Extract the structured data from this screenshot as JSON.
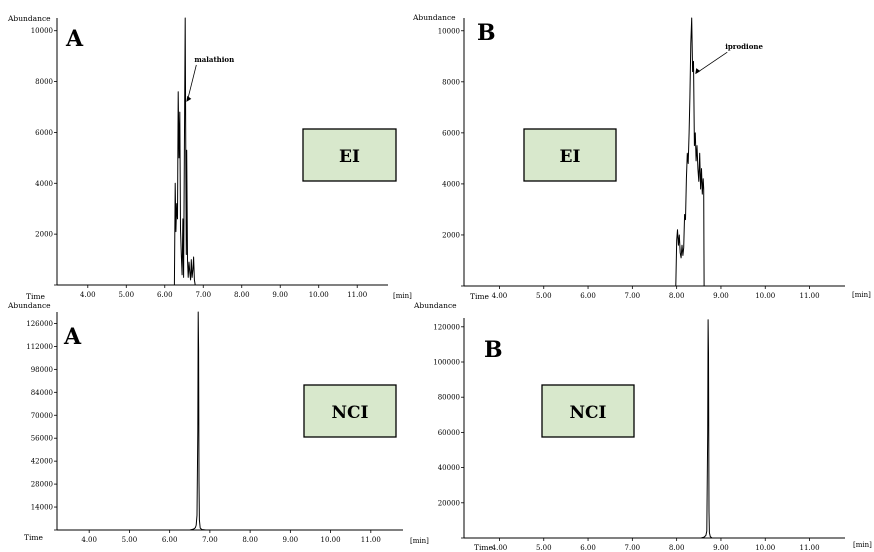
{
  "chart_data": [
    {
      "type": "line",
      "panel_letter": "A",
      "box_label": "EI",
      "ylabel": "Abundance",
      "xlabel": "Time",
      "x_unit": "[min]",
      "xlim": [
        3.2,
        11.8
      ],
      "ylim": [
        0,
        10500
      ],
      "x_ticks": [
        "4.00",
        "5.00",
        "6.00",
        "7.00",
        "8.00",
        "9.00",
        "10.00",
        "11.00"
      ],
      "x_tick_values": [
        4,
        5,
        6,
        7,
        8,
        9,
        10,
        11
      ],
      "y_ticks": [
        "2000",
        "4000",
        "6000",
        "8000",
        "10000"
      ],
      "y_tick_values": [
        2000,
        4000,
        6000,
        8000,
        10000
      ],
      "annotation": {
        "text": "malathion",
        "x": 6.56,
        "y": 7200
      },
      "series": [
        {
          "x": [
            6.25,
            6.27,
            6.29,
            6.31,
            6.33,
            6.35,
            6.37,
            6.39,
            6.41,
            6.43,
            6.45,
            6.47,
            6.49,
            6.51,
            6.53,
            6.55,
            6.56,
            6.57,
            6.59,
            6.61,
            6.63,
            6.65,
            6.67,
            6.69,
            6.71,
            6.73,
            6.75,
            6.77,
            6.79
          ],
          "y": [
            0,
            4000,
            2100,
            3200,
            2600,
            7600,
            5000,
            6800,
            2200,
            1200,
            400,
            2600,
            300,
            5400,
            10500,
            4200,
            1200,
            5300,
            1000,
            300,
            900,
            500,
            200,
            1000,
            300,
            600,
            1100,
            200,
            0
          ]
        }
      ]
    },
    {
      "type": "line",
      "panel_letter": "B",
      "box_label": "EI",
      "ylabel": "Abundance",
      "xlabel": "Time",
      "x_unit": "[min]",
      "xlim": [
        3.2,
        11.8
      ],
      "ylim": [
        0,
        10500
      ],
      "x_ticks": [
        "4.00",
        "5.00",
        "6.00",
        "7.00",
        "8.00",
        "9.00",
        "10.00",
        "11.00"
      ],
      "x_tick_values": [
        4,
        5,
        6,
        7,
        8,
        9,
        10,
        11
      ],
      "y_ticks": [
        "2000",
        "4000",
        "6000",
        "8000",
        "10000"
      ],
      "y_tick_values": [
        2000,
        4000,
        6000,
        8000,
        10000
      ],
      "annotation": {
        "text": "iprodione",
        "x": 8.42,
        "y": 8300
      },
      "series": [
        {
          "x": [
            7.98,
            8.0,
            8.02,
            8.04,
            8.06,
            8.08,
            8.1,
            8.12,
            8.14,
            8.16,
            8.18,
            8.2,
            8.22,
            8.24,
            8.26,
            8.28,
            8.3,
            8.32,
            8.34,
            8.36,
            8.38,
            8.4,
            8.42,
            8.44,
            8.46,
            8.48,
            8.5,
            8.52,
            8.54,
            8.56,
            8.58,
            8.6,
            8.61,
            8.62
          ],
          "y": [
            0,
            1800,
            2200,
            1600,
            2000,
            1300,
            1100,
            1600,
            1200,
            1500,
            2800,
            2600,
            4200,
            5200,
            4800,
            6000,
            7400,
            9500,
            10500,
            8400,
            8800,
            5500,
            6000,
            4900,
            5500,
            4600,
            4100,
            5200,
            3800,
            4600,
            3600,
            4200,
            3800,
            0
          ]
        }
      ]
    },
    {
      "type": "line",
      "panel_letter": "A",
      "box_label": "NCI",
      "ylabel": "Abundance",
      "xlabel": "Time",
      "x_unit": "[min]",
      "xlim": [
        3.2,
        11.8
      ],
      "ylim": [
        0,
        133000
      ],
      "x_ticks": [
        "4.00",
        "5.00",
        "6.00",
        "7.00",
        "8.00",
        "9.00",
        "10.00",
        "11.00"
      ],
      "x_tick_values": [
        4,
        5,
        6,
        7,
        8,
        9,
        10,
        11
      ],
      "y_ticks": [
        "14000",
        "28000",
        "42000",
        "56000",
        "70000",
        "84000",
        "98000",
        "112000",
        "126000"
      ],
      "y_tick_values": [
        14000,
        28000,
        42000,
        56000,
        70000,
        84000,
        98000,
        112000,
        126000
      ],
      "series": [
        {
          "x": [
            3.2,
            6.5,
            6.58,
            6.62,
            6.64,
            6.66,
            6.68,
            6.7,
            6.71,
            6.72,
            6.73,
            6.74,
            6.76,
            6.78,
            6.8,
            6.9,
            11.8
          ],
          "y": [
            0,
            0,
            400,
            1000,
            1500,
            3000,
            9000,
            60000,
            133000,
            110000,
            30000,
            6000,
            1200,
            800,
            300,
            0,
            0
          ]
        }
      ]
    },
    {
      "type": "line",
      "panel_letter": "B",
      "box_label": "NCI",
      "ylabel": "Abundance",
      "xlabel": "Time",
      "x_unit": "[min]",
      "xlim": [
        3.2,
        11.8
      ],
      "ylim": [
        0,
        125000
      ],
      "x_ticks": [
        "4.00",
        "5.00",
        "6.00",
        "7.00",
        "8.00",
        "9.00",
        "10.00",
        "11.00"
      ],
      "x_tick_values": [
        4,
        5,
        6,
        7,
        8,
        9,
        10,
        11
      ],
      "y_ticks": [
        "20000",
        "40000",
        "60000",
        "80000",
        "100000",
        "120000"
      ],
      "y_tick_values": [
        20000,
        40000,
        60000,
        80000,
        100000,
        120000
      ],
      "series": [
        {
          "x": [
            3.2,
            8.55,
            8.62,
            8.66,
            8.68,
            8.7,
            8.71,
            8.72,
            8.73,
            8.74,
            8.76,
            8.8,
            11.8
          ],
          "y": [
            0,
            0,
            500,
            1500,
            4000,
            60000,
            124000,
            105000,
            15000,
            3000,
            800,
            0,
            0
          ]
        }
      ]
    }
  ]
}
